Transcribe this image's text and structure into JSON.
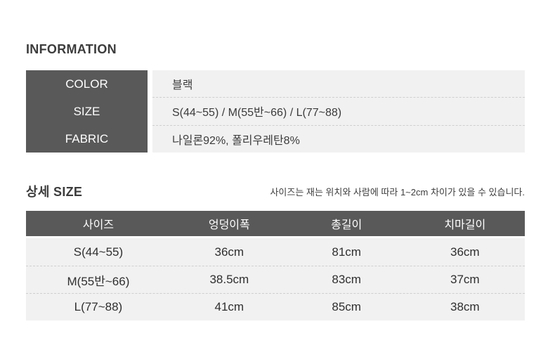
{
  "page": {
    "colors": {
      "header_dark": "#595959",
      "row_light": "#f1f1f1",
      "title_text": "#3c3c3c",
      "dashed_divider": "#cfcfcf"
    }
  },
  "information": {
    "title": "INFORMATION",
    "rows": [
      {
        "label": "COLOR",
        "value": "블랙"
      },
      {
        "label": "SIZE",
        "value": "S(44~55) / M(55반~66) / L(77~88)"
      },
      {
        "label": "FABRIC",
        "value": "나일론92%, 폴리우레탄8%"
      }
    ]
  },
  "detail_size": {
    "title": "상세 SIZE",
    "note": "사이즈는 재는 위치와 사람에 따라 1~2cm 차이가 있을 수 있습니다.",
    "table": {
      "headers": [
        "사이즈",
        "엉덩이폭",
        "총길이",
        "치마길이"
      ],
      "rows": [
        [
          "S(44~55)",
          "36cm",
          "81cm",
          "36cm"
        ],
        [
          "M(55반~66)",
          "38.5cm",
          "83cm",
          "37cm"
        ],
        [
          "L(77~88)",
          "41cm",
          "85cm",
          "38cm"
        ]
      ]
    }
  }
}
